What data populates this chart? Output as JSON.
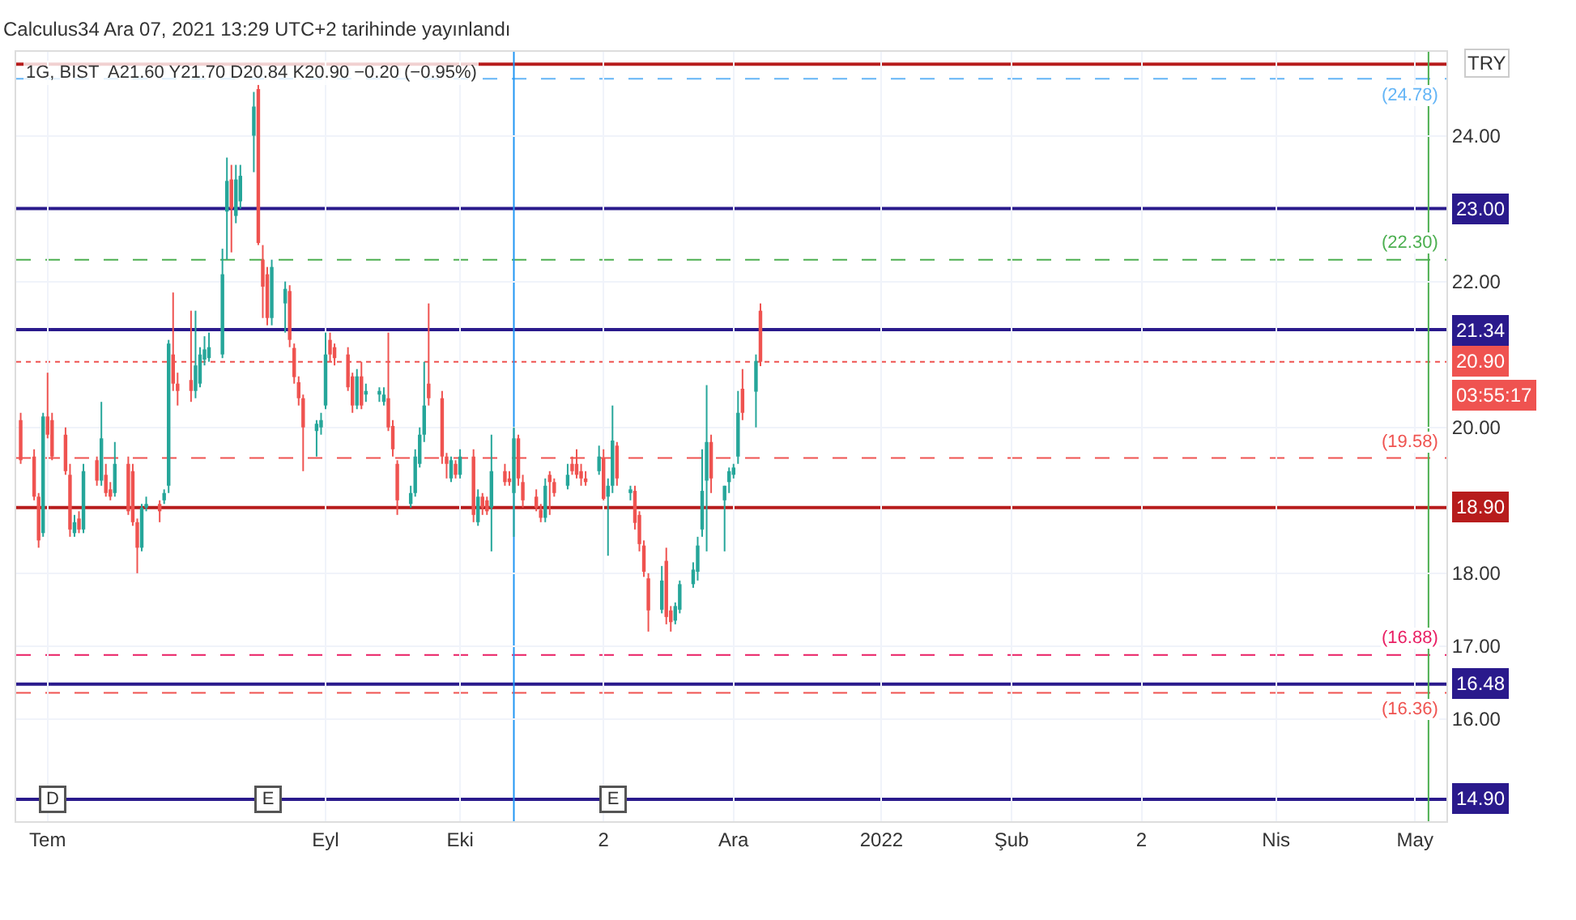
{
  "chart_data": {
    "type": "candlestick",
    "title": "Calculus34 Ara 07, 2021 13:29 UTC+2 tarihinde yayınlandı",
    "subtitle": "1G, BIST  A21.60 Y21.70 D20.84 K20.90 −0.20 (−0.95%)",
    "x": [
      "2021-06-25",
      "2021-06-28",
      "2021-06-29",
      "2021-06-30",
      "2021-07-01",
      "2021-07-02",
      "2021-07-05",
      "2021-07-06",
      "2021-07-07",
      "2021-07-08",
      "2021-07-09",
      "2021-07-12",
      "2021-07-13",
      "2021-07-14",
      "2021-07-15",
      "2021-07-16",
      "2021-07-19",
      "2021-07-20",
      "2021-07-21",
      "2021-07-22",
      "2021-07-23",
      "2021-07-26",
      "2021-07-27",
      "2021-07-28",
      "2021-07-29",
      "2021-07-30",
      "2021-08-02",
      "2021-08-03",
      "2021-08-04",
      "2021-08-05",
      "2021-08-06",
      "2021-08-09",
      "2021-08-10",
      "2021-08-11",
      "2021-08-12",
      "2021-08-13",
      "2021-08-16",
      "2021-08-17",
      "2021-08-18",
      "2021-08-19",
      "2021-08-20",
      "2021-08-23",
      "2021-08-24",
      "2021-08-25",
      "2021-08-26",
      "2021-08-27",
      "2021-08-30",
      "2021-08-31",
      "2021-09-01",
      "2021-09-02",
      "2021-09-03",
      "2021-09-06",
      "2021-09-07",
      "2021-09-08",
      "2021-09-09",
      "2021-09-10",
      "2021-09-13",
      "2021-09-14",
      "2021-09-15",
      "2021-09-16",
      "2021-09-17",
      "2021-09-20",
      "2021-09-21",
      "2021-09-22",
      "2021-09-23",
      "2021-09-24",
      "2021-09-27",
      "2021-09-28",
      "2021-09-29",
      "2021-09-30",
      "2021-10-01",
      "2021-10-04",
      "2021-10-05",
      "2021-10-06",
      "2021-10-07",
      "2021-10-08",
      "2021-10-11",
      "2021-10-12",
      "2021-10-13",
      "2021-10-14",
      "2021-10-15",
      "2021-10-18",
      "2021-10-19",
      "2021-10-20",
      "2021-10-21",
      "2021-10-22",
      "2021-10-25",
      "2021-10-26",
      "2021-10-27",
      "2021-10-28",
      "2021-10-29",
      "2021-11-01",
      "2021-11-02",
      "2021-11-03",
      "2021-11-04",
      "2021-11-05",
      "2021-11-08",
      "2021-11-09",
      "2021-11-10",
      "2021-11-11",
      "2021-11-12",
      "2021-11-15",
      "2021-11-16",
      "2021-11-17",
      "2021-11-18",
      "2021-11-19",
      "2021-11-22",
      "2021-11-23",
      "2021-11-24",
      "2021-11-25",
      "2021-11-26",
      "2021-11-29",
      "2021-11-30",
      "2021-12-01",
      "2021-12-02",
      "2021-12-03",
      "2021-12-06",
      "2021-12-07"
    ],
    "ohlc": [
      [
        20.1,
        20.2,
        19.5,
        19.55
      ],
      [
        19.6,
        19.7,
        19.0,
        19.05
      ],
      [
        19.05,
        19.1,
        18.35,
        18.45
      ],
      [
        18.55,
        20.2,
        18.5,
        20.15
      ],
      [
        20.15,
        20.75,
        19.85,
        19.9
      ],
      [
        20.1,
        20.2,
        19.55,
        19.6
      ],
      [
        19.9,
        20.0,
        19.35,
        19.4
      ],
      [
        19.35,
        19.5,
        18.5,
        18.6
      ],
      [
        18.55,
        18.8,
        18.5,
        18.7
      ],
      [
        18.75,
        18.85,
        18.55,
        18.6
      ],
      [
        18.6,
        19.5,
        18.55,
        19.4
      ],
      [
        19.55,
        19.6,
        19.2,
        19.27
      ],
      [
        19.27,
        20.35,
        19.2,
        19.85
      ],
      [
        19.35,
        19.5,
        19.05,
        19.1
      ],
      [
        19.15,
        19.25,
        19.0,
        19.05
      ],
      [
        19.1,
        19.8,
        19.05,
        19.5
      ],
      [
        19.5,
        19.6,
        18.8,
        18.85
      ],
      [
        19.4,
        19.5,
        18.65,
        18.7
      ],
      [
        18.7,
        18.75,
        18.0,
        18.35
      ],
      [
        18.35,
        18.95,
        18.3,
        18.9
      ],
      [
        18.9,
        19.05,
        18.85,
        18.95
      ],
      [
        18.95,
        19.0,
        18.7,
        18.85
      ],
      [
        19.0,
        19.15,
        18.95,
        19.1
      ],
      [
        19.2,
        21.2,
        19.1,
        21.15
      ],
      [
        21.0,
        21.85,
        20.5,
        20.6
      ],
      [
        20.6,
        20.75,
        20.3,
        20.5
      ],
      [
        20.65,
        21.6,
        20.35,
        20.5
      ],
      [
        20.5,
        21.6,
        20.4,
        20.85
      ],
      [
        20.6,
        21.1,
        20.55,
        21.0
      ],
      [
        20.93,
        21.25,
        20.85,
        21.07
      ],
      [
        20.95,
        21.3,
        20.9,
        21.1
      ],
      [
        21.0,
        22.45,
        20.95,
        22.1
      ],
      [
        22.96,
        23.7,
        22.3,
        23.38
      ],
      [
        23.4,
        23.6,
        22.4,
        23.0
      ],
      [
        22.9,
        23.6,
        22.8,
        23.4
      ],
      [
        23.1,
        23.6,
        23.0,
        23.45
      ],
      [
        24.0,
        24.6,
        23.5,
        24.4
      ],
      [
        24.64,
        24.7,
        22.5,
        22.53
      ],
      [
        22.3,
        22.5,
        21.5,
        21.93
      ],
      [
        22.1,
        22.2,
        21.4,
        21.5
      ],
      [
        21.5,
        22.3,
        21.4,
        22.2
      ],
      [
        21.7,
        22.0,
        21.3,
        21.9
      ],
      [
        21.87,
        21.95,
        21.1,
        21.2
      ],
      [
        21.09,
        21.15,
        20.6,
        20.69
      ],
      [
        20.62,
        20.7,
        20.3,
        20.4
      ],
      [
        20.4,
        20.45,
        19.4,
        20.0
      ],
      [
        19.95,
        20.1,
        19.6,
        20.05
      ],
      [
        20.0,
        20.2,
        19.9,
        20.1
      ],
      [
        20.3,
        21.3,
        20.25,
        21.0
      ],
      [
        21.2,
        21.3,
        20.9,
        21.0
      ],
      [
        21.1,
        21.15,
        20.85,
        20.95
      ],
      [
        21.0,
        21.1,
        20.5,
        20.55
      ],
      [
        20.7,
        20.75,
        20.2,
        20.3
      ],
      [
        20.3,
        20.8,
        20.25,
        20.7
      ],
      [
        20.7,
        20.9,
        20.25,
        20.3
      ],
      [
        20.45,
        20.6,
        20.35,
        20.5
      ],
      [
        20.45,
        20.55,
        20.35,
        20.5
      ],
      [
        20.35,
        20.55,
        20.3,
        20.45
      ],
      [
        20.4,
        21.3,
        19.95,
        20.0
      ],
      [
        20.02,
        20.1,
        19.6,
        19.7
      ],
      [
        19.5,
        19.55,
        18.8,
        19.0
      ],
      [
        18.95,
        19.2,
        18.9,
        19.1
      ],
      [
        19.1,
        19.7,
        19.05,
        19.6
      ],
      [
        19.5,
        20.0,
        19.45,
        19.9
      ],
      [
        19.9,
        20.9,
        19.8,
        20.3
      ],
      [
        20.6,
        21.7,
        20.3,
        20.4
      ],
      [
        20.4,
        20.5,
        19.5,
        19.6
      ],
      [
        19.6,
        19.65,
        19.3,
        19.5
      ],
      [
        19.3,
        19.6,
        19.25,
        19.55
      ],
      [
        19.5,
        19.55,
        19.3,
        19.35
      ],
      [
        19.35,
        19.7,
        19.3,
        19.6
      ],
      [
        19.6,
        19.7,
        18.7,
        18.8
      ],
      [
        18.7,
        19.15,
        18.65,
        19.05
      ],
      [
        19.05,
        19.1,
        18.8,
        18.9
      ],
      [
        19.0,
        19.05,
        18.8,
        18.85
      ],
      [
        18.9,
        19.9,
        18.3,
        19.4
      ],
      [
        19.4,
        19.5,
        19.2,
        19.25
      ],
      [
        19.3,
        19.4,
        19.2,
        19.25
      ],
      [
        19.1,
        20.0,
        18.5,
        19.85
      ],
      [
        19.85,
        19.9,
        19.2,
        19.3
      ],
      [
        19.25,
        19.35,
        18.9,
        19.0
      ],
      [
        19.05,
        19.15,
        18.85,
        18.9
      ],
      [
        18.87,
        18.95,
        18.7,
        18.76
      ],
      [
        18.76,
        19.3,
        18.7,
        19.2
      ],
      [
        19.35,
        19.4,
        18.8,
        19.25
      ],
      [
        19.25,
        19.3,
        19.05,
        19.1
      ],
      [
        19.2,
        19.5,
        19.15,
        19.35
      ],
      [
        19.5,
        19.6,
        19.35,
        19.4
      ],
      [
        19.5,
        19.7,
        19.3,
        19.35
      ],
      [
        19.4,
        19.5,
        19.2,
        19.3
      ],
      [
        19.3,
        19.4,
        19.2,
        19.25
      ],
      [
        19.4,
        19.75,
        19.35,
        19.6
      ],
      [
        19.58,
        19.7,
        19.0,
        19.02
      ],
      [
        19.05,
        19.3,
        18.24,
        19.2
      ],
      [
        19.2,
        20.3,
        19.1,
        19.82
      ],
      [
        19.75,
        19.8,
        19.2,
        19.3
      ],
      [
        19.1,
        19.2,
        19.0,
        19.15
      ],
      [
        19.13,
        19.2,
        18.6,
        18.69
      ],
      [
        18.8,
        18.85,
        18.3,
        18.4
      ],
      [
        18.38,
        18.45,
        17.95,
        18.02
      ],
      [
        17.93,
        18.0,
        17.2,
        17.49
      ],
      [
        17.5,
        18.1,
        17.45,
        17.9
      ],
      [
        18.17,
        18.35,
        17.3,
        17.4
      ],
      [
        17.49,
        17.55,
        17.2,
        17.33
      ],
      [
        17.35,
        17.6,
        17.3,
        17.55
      ],
      [
        17.5,
        17.9,
        17.45,
        17.85
      ],
      [
        17.85,
        18.15,
        17.8,
        18.05
      ],
      [
        18.02,
        18.5,
        17.9,
        18.38
      ],
      [
        18.6,
        19.7,
        18.5,
        19.13
      ],
      [
        19.27,
        20.58,
        18.3,
        19.8
      ],
      [
        19.8,
        19.9,
        19.1,
        19.3
      ],
      [
        19.0,
        19.2,
        18.3,
        19.2
      ],
      [
        19.25,
        19.45,
        19.1,
        19.4
      ],
      [
        19.35,
        19.5,
        19.3,
        19.45
      ],
      [
        19.6,
        20.5,
        19.5,
        20.2
      ],
      [
        20.53,
        20.8,
        20.1,
        20.2
      ],
      [
        20.49,
        21.0,
        20.0,
        20.91
      ],
      [
        21.6,
        21.7,
        20.84,
        20.9
      ]
    ],
    "xlim": [
      "2021-06-24",
      "2022-05-09"
    ],
    "xticks": [
      {
        "value": "2021-07-01",
        "label": "Tem"
      },
      {
        "value": "2021-09-01",
        "label": "Eyl"
      },
      {
        "value": "2021-10-01",
        "label": "Eki"
      },
      {
        "value": "2021-11-02",
        "label": "2"
      },
      {
        "value": "2021-12-01",
        "label": "Ara"
      },
      {
        "value": "2022-01-03",
        "label": "2022"
      },
      {
        "value": "2022-02-01",
        "label": "Şub"
      },
      {
        "value": "2022-03-02",
        "label": "2"
      },
      {
        "value": "2022-04-01",
        "label": "Nis"
      },
      {
        "value": "2022-05-02",
        "label": "May"
      }
    ],
    "ylim": [
      14.6,
      25.15
    ],
    "yticks": [
      {
        "value": 16,
        "label": "16.00"
      },
      {
        "value": 17,
        "label": "17.00"
      },
      {
        "value": 18,
        "label": "18.00"
      },
      {
        "value": 20,
        "label": "20.00"
      },
      {
        "value": 22,
        "label": "22.00"
      },
      {
        "value": 24,
        "label": "24.00"
      }
    ],
    "grid": true,
    "ref_lines": [
      {
        "axis": "y",
        "value": 24.98,
        "label": null,
        "color": "#b71c1c",
        "line_style": "solid"
      },
      {
        "axis": "y",
        "value": 24.78,
        "label": "(24.78)",
        "color": "#64b5f6",
        "line_style": "dashed"
      },
      {
        "axis": "y",
        "value": 23.0,
        "label": "23.00",
        "color": "#2a1a8c",
        "line_style": "solid"
      },
      {
        "axis": "y",
        "value": 22.3,
        "label": "(22.30)",
        "color": "#4caf50",
        "line_style": "dashed"
      },
      {
        "axis": "y",
        "value": 21.34,
        "label": "21.34",
        "color": "#2a1a8c",
        "line_style": "solid"
      },
      {
        "axis": "y",
        "value": 20.9,
        "label": "20.90",
        "color": "#ef5350",
        "line_style": "dotted"
      },
      {
        "axis": "y",
        "value": 19.58,
        "label": "(19.58)",
        "color": "#ef5350",
        "line_style": "dashed"
      },
      {
        "axis": "y",
        "value": 18.9,
        "label": "18.90",
        "color": "#b71c1c",
        "line_style": "solid"
      },
      {
        "axis": "y",
        "value": 16.88,
        "label": "(16.88)",
        "color": "#e91e63",
        "line_style": "dashed"
      },
      {
        "axis": "y",
        "value": 16.48,
        "label": "16.48",
        "color": "#2a1a8c",
        "line_style": "solid"
      },
      {
        "axis": "y",
        "value": 16.36,
        "label": "(16.36)",
        "color": "#ef5350",
        "line_style": "dashed"
      },
      {
        "axis": "y",
        "value": 14.9,
        "label": "14.90",
        "color": "#2a1a8c",
        "line_style": "solid"
      },
      {
        "axis": "x",
        "value": "2021-10-13",
        "label": null,
        "color": "#2196f3",
        "line_style": "solid"
      },
      {
        "axis": "x",
        "value": "2022-05-05",
        "label": null,
        "color": "#4caf50",
        "line_style": "solid"
      }
    ],
    "annotations": [
      "TRY",
      "03:55:17",
      {
        "text": "D",
        "x": "2021-07-02",
        "y": 14.9
      },
      {
        "text": "E",
        "x": "2021-08-19",
        "y": 14.9
      },
      {
        "text": "E",
        "x": "2021-11-04",
        "y": 14.9
      }
    ]
  }
}
